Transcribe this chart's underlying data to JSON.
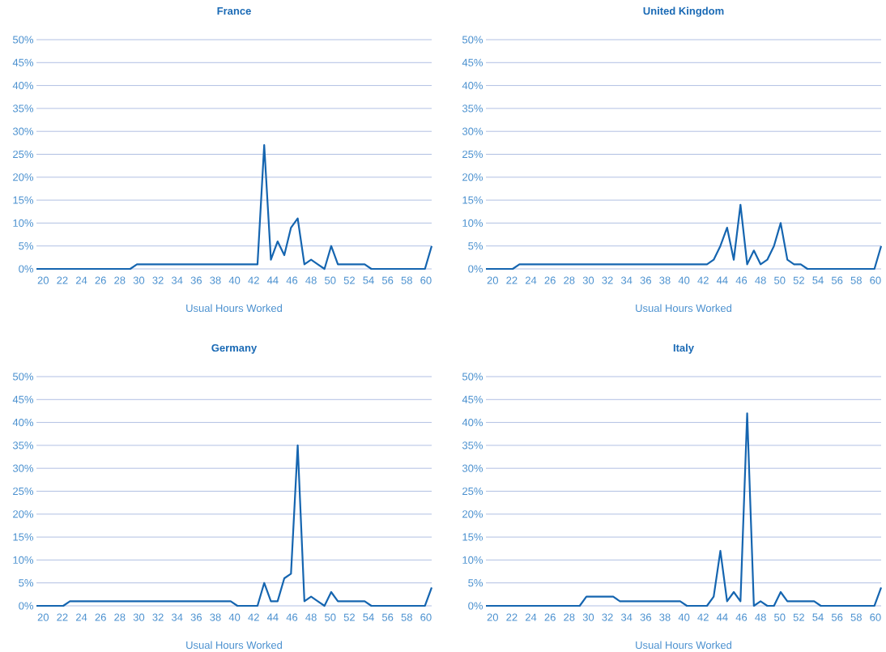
{
  "chart_data": [
    {
      "type": "line",
      "title": "France",
      "xlabel": "Usual Hours Worked",
      "color": "#1565b0",
      "x": [
        19.3,
        20.0,
        20.7,
        21.4,
        22.1,
        22.8,
        23.5,
        24.2,
        24.9,
        25.6,
        26.3,
        27.0,
        27.7,
        28.4,
        29.1,
        29.8,
        30.5,
        31.2,
        31.9,
        32.6,
        33.3,
        34.0,
        34.7,
        35.4,
        36.1,
        36.8,
        37.5,
        38.2,
        38.9,
        39.6,
        40.3,
        41.0,
        41.7,
        42.4,
        43.1,
        43.8,
        44.5,
        45.2,
        45.9,
        46.6,
        47.3,
        48.0,
        48.7,
        49.4,
        50.1,
        50.8,
        51.5,
        52.2,
        52.9,
        53.6,
        54.3,
        55.0,
        55.7,
        56.4,
        57.1,
        57.8,
        58.5,
        59.2,
        59.9,
        60.6
      ],
      "values": [
        0,
        0,
        0,
        0,
        0,
        0,
        0,
        0,
        0,
        0,
        0,
        0,
        0,
        0,
        0,
        1,
        1,
        1,
        1,
        1,
        1,
        1,
        1,
        1,
        1,
        1,
        1,
        1,
        1,
        1,
        1,
        1,
        1,
        1,
        27,
        2,
        6,
        3,
        9,
        11,
        1,
        2,
        1,
        0,
        5,
        1,
        1,
        1,
        1,
        1,
        0,
        0,
        0,
        0,
        0,
        0,
        0,
        0,
        0,
        5
      ],
      "xlim": [
        19.3,
        60.6
      ],
      "xticks": [
        20,
        22,
        24,
        26,
        28,
        30,
        32,
        34,
        36,
        38,
        40,
        42,
        44,
        46,
        48,
        50,
        52,
        54,
        56,
        58,
        60
      ],
      "ylim": [
        0,
        50
      ],
      "yticks": [
        {
          "value": 0,
          "label": "0%"
        },
        {
          "value": 5,
          "label": "5%"
        },
        {
          "value": 10,
          "label": "10%"
        },
        {
          "value": 15,
          "label": "15%"
        },
        {
          "value": 20,
          "label": "20%"
        },
        {
          "value": 25,
          "label": "25%"
        },
        {
          "value": 30,
          "label": "30%"
        },
        {
          "value": 35,
          "label": "35%"
        },
        {
          "value": 40,
          "label": "40%"
        },
        {
          "value": 45,
          "label": "45%"
        },
        {
          "value": 50,
          "label": "50%"
        }
      ],
      "grid": "y"
    },
    {
      "type": "line",
      "title": "United Kingdom",
      "xlabel": "Usual Hours Worked",
      "color": "#1565b0",
      "x": [
        19.3,
        20.0,
        20.7,
        21.4,
        22.1,
        22.8,
        23.5,
        24.2,
        24.9,
        25.6,
        26.3,
        27.0,
        27.7,
        28.4,
        29.1,
        29.8,
        30.5,
        31.2,
        31.9,
        32.6,
        33.3,
        34.0,
        34.7,
        35.4,
        36.1,
        36.8,
        37.5,
        38.2,
        38.9,
        39.6,
        40.3,
        41.0,
        41.7,
        42.4,
        43.1,
        43.8,
        44.5,
        45.2,
        45.9,
        46.6,
        47.3,
        48.0,
        48.7,
        49.4,
        50.1,
        50.8,
        51.5,
        52.2,
        52.9,
        53.6,
        54.3,
        55.0,
        55.7,
        56.4,
        57.1,
        57.8,
        58.5,
        59.2,
        59.9,
        60.6
      ],
      "values": [
        0,
        0,
        0,
        0,
        0,
        1,
        1,
        1,
        1,
        1,
        1,
        1,
        1,
        1,
        1,
        1,
        1,
        1,
        1,
        1,
        1,
        1,
        1,
        1,
        1,
        1,
        1,
        1,
        1,
        1,
        1,
        1,
        1,
        1,
        2,
        5,
        9,
        2,
        14,
        1,
        4,
        1,
        2,
        5,
        10,
        2,
        1,
        1,
        0,
        0,
        0,
        0,
        0,
        0,
        0,
        0,
        0,
        0,
        0,
        5
      ],
      "xlim": [
        19.3,
        60.6
      ],
      "xticks": [
        20,
        22,
        24,
        26,
        28,
        30,
        32,
        34,
        36,
        38,
        40,
        42,
        44,
        46,
        48,
        50,
        52,
        54,
        56,
        58,
        60
      ],
      "ylim": [
        0,
        50
      ],
      "yticks": [
        {
          "value": 0,
          "label": "0%"
        },
        {
          "value": 5,
          "label": "5%"
        },
        {
          "value": 10,
          "label": "10%"
        },
        {
          "value": 15,
          "label": "15%"
        },
        {
          "value": 20,
          "label": "20%"
        },
        {
          "value": 25,
          "label": "25%"
        },
        {
          "value": 30,
          "label": "30%"
        },
        {
          "value": 35,
          "label": "35%"
        },
        {
          "value": 40,
          "label": "40%"
        },
        {
          "value": 45,
          "label": "45%"
        },
        {
          "value": 50,
          "label": "50%"
        }
      ],
      "grid": "y"
    },
    {
      "type": "line",
      "title": "Germany",
      "xlabel": "Usual Hours Worked",
      "color": "#1565b0",
      "x": [
        19.3,
        20.0,
        20.7,
        21.4,
        22.1,
        22.8,
        23.5,
        24.2,
        24.9,
        25.6,
        26.3,
        27.0,
        27.7,
        28.4,
        29.1,
        29.8,
        30.5,
        31.2,
        31.9,
        32.6,
        33.3,
        34.0,
        34.7,
        35.4,
        36.1,
        36.8,
        37.5,
        38.2,
        38.9,
        39.6,
        40.3,
        41.0,
        41.7,
        42.4,
        43.1,
        43.8,
        44.5,
        45.2,
        45.9,
        46.6,
        47.3,
        48.0,
        48.7,
        49.4,
        50.1,
        50.8,
        51.5,
        52.2,
        52.9,
        53.6,
        54.3,
        55.0,
        55.7,
        56.4,
        57.1,
        57.8,
        58.5,
        59.2,
        59.9,
        60.6
      ],
      "values": [
        0,
        0,
        0,
        0,
        0,
        1,
        1,
        1,
        1,
        1,
        1,
        1,
        1,
        1,
        1,
        1,
        1,
        1,
        1,
        1,
        1,
        1,
        1,
        1,
        1,
        1,
        1,
        1,
        1,
        1,
        0,
        0,
        0,
        0,
        5,
        1,
        1,
        6,
        7,
        35,
        1,
        2,
        1,
        0,
        3,
        1,
        1,
        1,
        1,
        1,
        0,
        0,
        0,
        0,
        0,
        0,
        0,
        0,
        0,
        4
      ],
      "xlim": [
        19.3,
        60.6
      ],
      "xticks": [
        20,
        22,
        24,
        26,
        28,
        30,
        32,
        34,
        36,
        38,
        40,
        42,
        44,
        46,
        48,
        50,
        52,
        54,
        56,
        58,
        60
      ],
      "ylim": [
        0,
        50
      ],
      "yticks": [
        {
          "value": 0,
          "label": "0%"
        },
        {
          "value": 5,
          "label": "5%"
        },
        {
          "value": 10,
          "label": "10%"
        },
        {
          "value": 15,
          "label": "15%"
        },
        {
          "value": 20,
          "label": "20%"
        },
        {
          "value": 25,
          "label": "25%"
        },
        {
          "value": 30,
          "label": "30%"
        },
        {
          "value": 35,
          "label": "35%"
        },
        {
          "value": 40,
          "label": "40%"
        },
        {
          "value": 45,
          "label": "45%"
        },
        {
          "value": 50,
          "label": "50%"
        }
      ],
      "grid": "y"
    },
    {
      "type": "line",
      "title": "Italy",
      "xlabel": "Usual Hours Worked",
      "color": "#1565b0",
      "x": [
        19.3,
        20.0,
        20.7,
        21.4,
        22.1,
        22.8,
        23.5,
        24.2,
        24.9,
        25.6,
        26.3,
        27.0,
        27.7,
        28.4,
        29.1,
        29.8,
        30.5,
        31.2,
        31.9,
        32.6,
        33.3,
        34.0,
        34.7,
        35.4,
        36.1,
        36.8,
        37.5,
        38.2,
        38.9,
        39.6,
        40.3,
        41.0,
        41.7,
        42.4,
        43.1,
        43.8,
        44.5,
        45.2,
        45.9,
        46.6,
        47.3,
        48.0,
        48.7,
        49.4,
        50.1,
        50.8,
        51.5,
        52.2,
        52.9,
        53.6,
        54.3,
        55.0,
        55.7,
        56.4,
        57.1,
        57.8,
        58.5,
        59.2,
        59.9,
        60.6
      ],
      "values": [
        0,
        0,
        0,
        0,
        0,
        0,
        0,
        0,
        0,
        0,
        0,
        0,
        0,
        0,
        0,
        2,
        2,
        2,
        2,
        2,
        1,
        1,
        1,
        1,
        1,
        1,
        1,
        1,
        1,
        1,
        0,
        0,
        0,
        0,
        2,
        12,
        1,
        3,
        1,
        42,
        0,
        1,
        0,
        0,
        3,
        1,
        1,
        1,
        1,
        1,
        0,
        0,
        0,
        0,
        0,
        0,
        0,
        0,
        0,
        4
      ],
      "xlim": [
        19.3,
        60.6
      ],
      "xticks": [
        20,
        22,
        24,
        26,
        28,
        30,
        32,
        34,
        36,
        38,
        40,
        42,
        44,
        46,
        48,
        50,
        52,
        54,
        56,
        58,
        60
      ],
      "ylim": [
        0,
        50
      ],
      "yticks": [
        {
          "value": 0,
          "label": "0%"
        },
        {
          "value": 5,
          "label": "5%"
        },
        {
          "value": 10,
          "label": "10%"
        },
        {
          "value": 15,
          "label": "15%"
        },
        {
          "value": 20,
          "label": "20%"
        },
        {
          "value": 25,
          "label": "25%"
        },
        {
          "value": 30,
          "label": "30%"
        },
        {
          "value": 35,
          "label": "35%"
        },
        {
          "value": 40,
          "label": "40%"
        },
        {
          "value": 45,
          "label": "45%"
        },
        {
          "value": 50,
          "label": "50%"
        }
      ],
      "grid": "y"
    }
  ]
}
